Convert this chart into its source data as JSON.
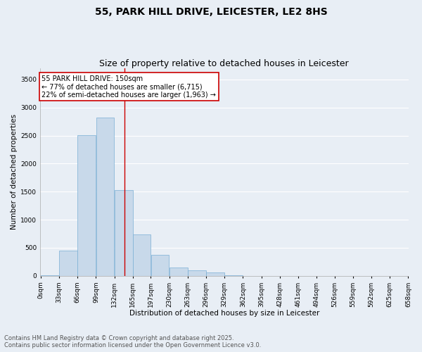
{
  "title_line1": "55, PARK HILL DRIVE, LEICESTER, LE2 8HS",
  "title_line2": "Size of property relative to detached houses in Leicester",
  "xlabel": "Distribution of detached houses by size in Leicester",
  "ylabel": "Number of detached properties",
  "bar_color": "#c8d9ea",
  "bar_edge_color": "#7aafd4",
  "background_color": "#e8eef5",
  "plot_bg_color": "#e8eef5",
  "grid_color": "#ffffff",
  "annotation_box_color": "#cc0000",
  "vline_color": "#cc0000",
  "bins": [
    0,
    33,
    66,
    99,
    132,
    165,
    197,
    230,
    263,
    296,
    329,
    362,
    395,
    428,
    461,
    494,
    526,
    559,
    592,
    625,
    658
  ],
  "bin_labels": [
    "0sqm",
    "33sqm",
    "66sqm",
    "99sqm",
    "132sqm",
    "165sqm",
    "197sqm",
    "230sqm",
    "263sqm",
    "296sqm",
    "329sqm",
    "362sqm",
    "395sqm",
    "428sqm",
    "461sqm",
    "494sqm",
    "526sqm",
    "559sqm",
    "592sqm",
    "625sqm",
    "658sqm"
  ],
  "bar_heights": [
    5,
    445,
    2510,
    2820,
    1530,
    740,
    375,
    145,
    95,
    60,
    12,
    4,
    2,
    1,
    1,
    1,
    0,
    0,
    0,
    0
  ],
  "ylim": [
    0,
    3700
  ],
  "yticks": [
    0,
    500,
    1000,
    1500,
    2000,
    2500,
    3000,
    3500
  ],
  "vline_x": 150,
  "annotation_text": "55 PARK HILL DRIVE: 150sqm\n← 77% of detached houses are smaller (6,715)\n22% of semi-detached houses are larger (1,963) →",
  "footer_line1": "Contains HM Land Registry data © Crown copyright and database right 2025.",
  "footer_line2": "Contains public sector information licensed under the Open Government Licence v3.0.",
  "title_fontsize": 10,
  "subtitle_fontsize": 9,
  "axis_label_fontsize": 7.5,
  "tick_fontsize": 6.5,
  "annotation_fontsize": 7,
  "footer_fontsize": 6
}
